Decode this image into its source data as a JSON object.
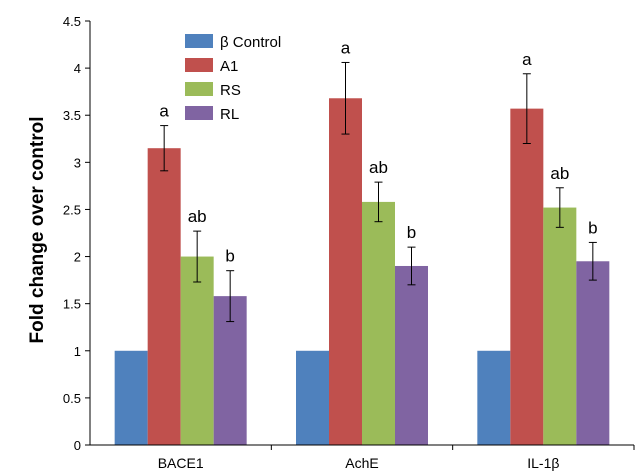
{
  "chart_data": {
    "type": "bar",
    "title": "",
    "xlabel": "",
    "ylabel": "Fold change over control",
    "ylim": [
      0,
      4.5
    ],
    "yticks": [
      "0",
      "0.5",
      "1",
      "1.5",
      "2",
      "2.5",
      "3",
      "3.5",
      "4",
      "4.5"
    ],
    "grid": false,
    "legend_position": "top-left",
    "categories": [
      "BACE1",
      "AchE",
      "IL-1β"
    ],
    "series": [
      {
        "name": "β Control",
        "color": "#4f81bd",
        "values": [
          1,
          1,
          1
        ],
        "errors": [
          null,
          null,
          null
        ],
        "labels": [
          "",
          "",
          ""
        ]
      },
      {
        "name": "A1",
        "color": "#c0504d",
        "values": [
          3.15,
          3.68,
          3.57
        ],
        "errors": [
          0.24,
          0.38,
          0.37
        ],
        "labels": [
          "a",
          "a",
          "a"
        ]
      },
      {
        "name": "RS",
        "color": "#9bbb59",
        "values": [
          2.0,
          2.58,
          2.52
        ],
        "errors": [
          0.27,
          0.21,
          0.21
        ],
        "labels": [
          "ab",
          "ab",
          "ab"
        ]
      },
      {
        "name": "RL",
        "color": "#8064a2",
        "values": [
          1.58,
          1.9,
          1.95
        ],
        "errors": [
          0.27,
          0.2,
          0.2
        ],
        "labels": [
          "b",
          "b",
          "b"
        ]
      }
    ]
  }
}
